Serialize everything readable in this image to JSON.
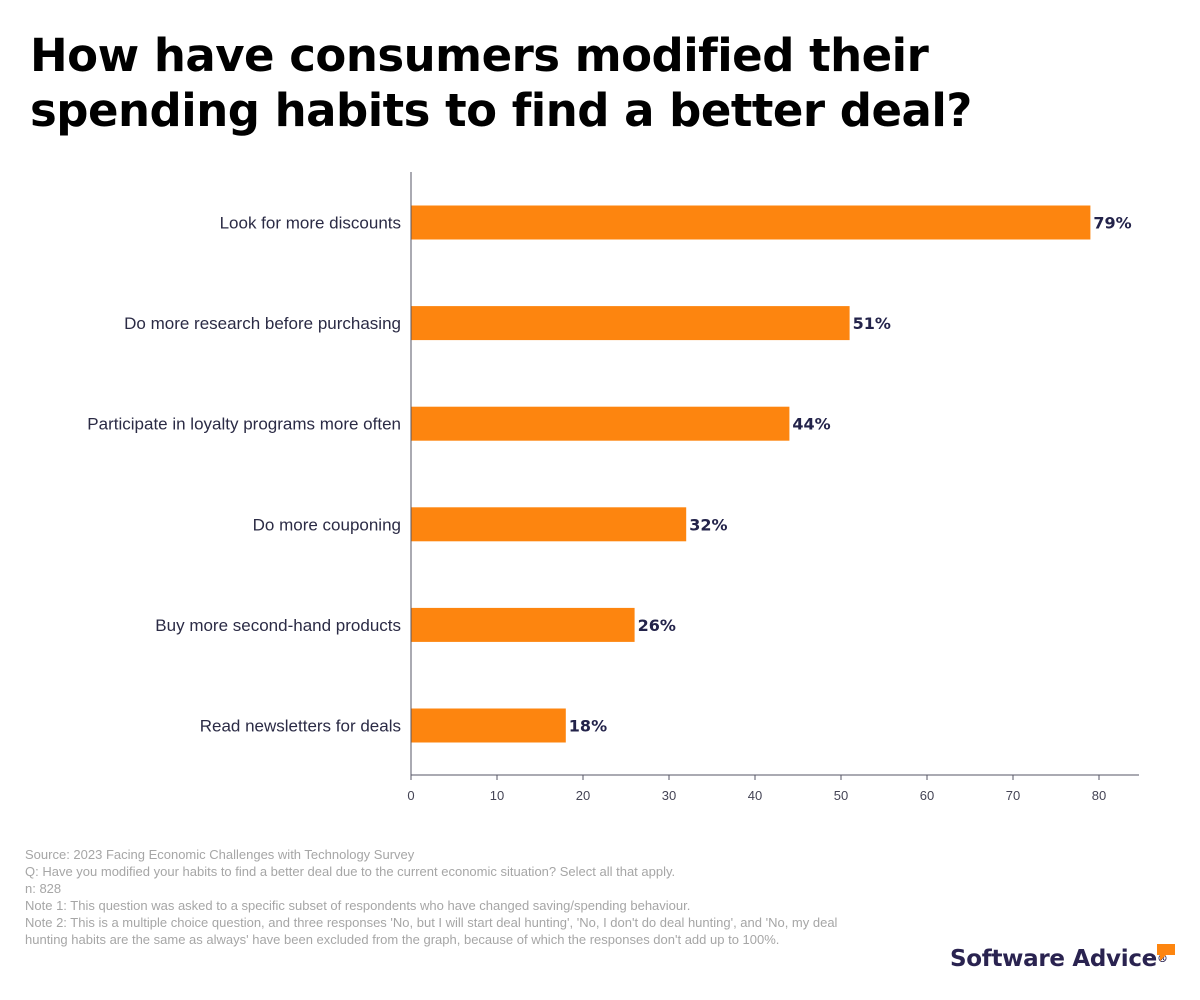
{
  "title": "How have consumers modified their spending habits to find a better deal?",
  "chart_data": {
    "type": "bar",
    "orientation": "horizontal",
    "title": "How have consumers modified their spending habits to find a better deal?",
    "categories": [
      "Look for more discounts",
      "Do more research before purchasing",
      "Participate in loyalty programs more often",
      "Do more couponing",
      "Buy more second-hand products",
      "Read newsletters for deals"
    ],
    "values": [
      79,
      51,
      44,
      32,
      26,
      18
    ],
    "value_labels": [
      "79%",
      "51%",
      "44%",
      "32%",
      "26%",
      "18%"
    ],
    "xticks": [
      0,
      10,
      20,
      30,
      40,
      50,
      60,
      70,
      80
    ],
    "xlim": [
      0,
      85
    ],
    "xlabel": "",
    "ylabel": "",
    "grid": false,
    "bar_color": "#fd850f"
  },
  "footnotes": {
    "source": "Source: 2023 Facing Economic Challenges with Technology Survey",
    "question": "Q: Have you modified your habits to find a better deal due to the current economic situation? Select all that apply.",
    "n": "n: 828",
    "note1": "Note 1: This question was asked to a specific subset of respondents who have changed saving/spending behaviour.",
    "note2": "Note 2: This is a multiple choice question, and three responses 'No, but I will start deal hunting', 'No, I don't do deal hunting', and 'No, my deal hunting habits are the same as always' have been excluded from the graph, because of which the responses don't add up to 100%."
  },
  "brand": {
    "name": "Software Advice",
    "mark": "®",
    "accent_color": "#fd850f",
    "text_color": "#2a2350",
    "icon": "speech-bubble-icon"
  }
}
